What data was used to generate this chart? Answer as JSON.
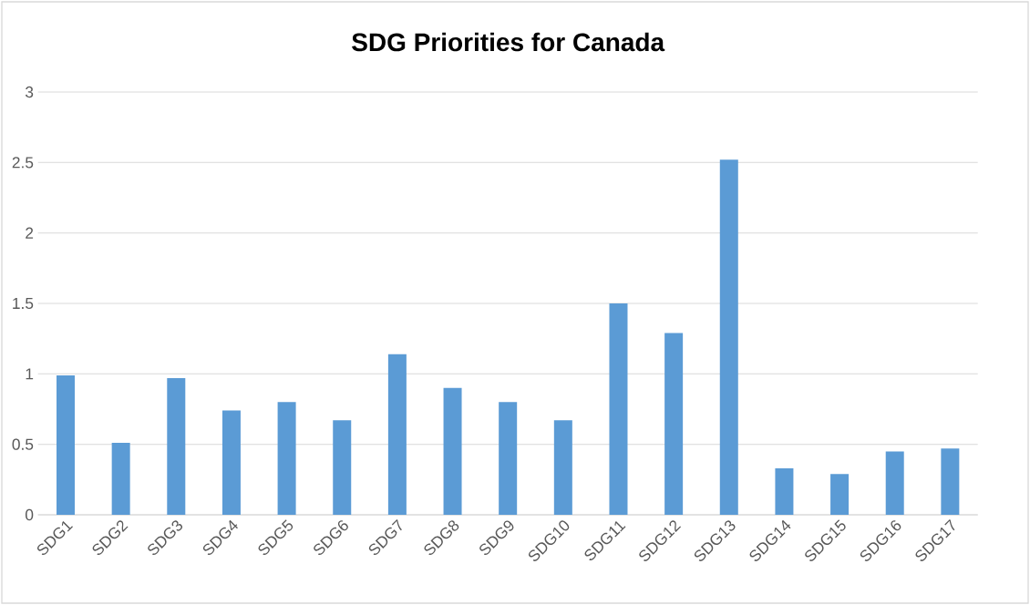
{
  "chart_data": {
    "type": "bar",
    "title": "SDG Priorities for Canada",
    "categories": [
      "SDG1",
      "SDG2",
      "SDG3",
      "SDG4",
      "SDG5",
      "SDG6",
      "SDG7",
      "SDG8",
      "SDG9",
      "SDG10",
      "SDG11",
      "SDG12",
      "SDG13",
      "SDG14",
      "SDG15",
      "SDG16",
      "SDG17"
    ],
    "values": [
      0.99,
      0.51,
      0.97,
      0.74,
      0.8,
      0.67,
      1.14,
      0.9,
      0.8,
      0.67,
      1.5,
      1.29,
      2.52,
      0.33,
      0.29,
      0.45,
      0.47
    ],
    "color": "#5b9bd5",
    "ylim": [
      0,
      3
    ],
    "yticks": [
      0,
      0.5,
      1,
      1.5,
      2,
      2.5,
      3
    ],
    "grid": "y"
  }
}
